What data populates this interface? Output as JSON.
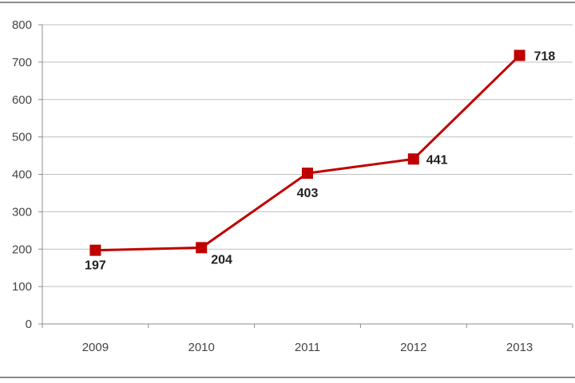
{
  "chart_data": {
    "type": "line",
    "categories": [
      "2009",
      "2010",
      "2011",
      "2012",
      "2013"
    ],
    "series": [
      {
        "values": [
          197,
          204,
          403,
          441,
          718
        ],
        "color": "#c00000"
      }
    ],
    "ylim": [
      0,
      800
    ],
    "yticks": [
      "0",
      "100",
      "200",
      "300",
      "400",
      "500",
      "600",
      "700",
      "800"
    ],
    "data_labels": [
      "197",
      "204",
      "403",
      "441",
      "718"
    ],
    "grid": true,
    "marker": "square",
    "legend": "none"
  }
}
